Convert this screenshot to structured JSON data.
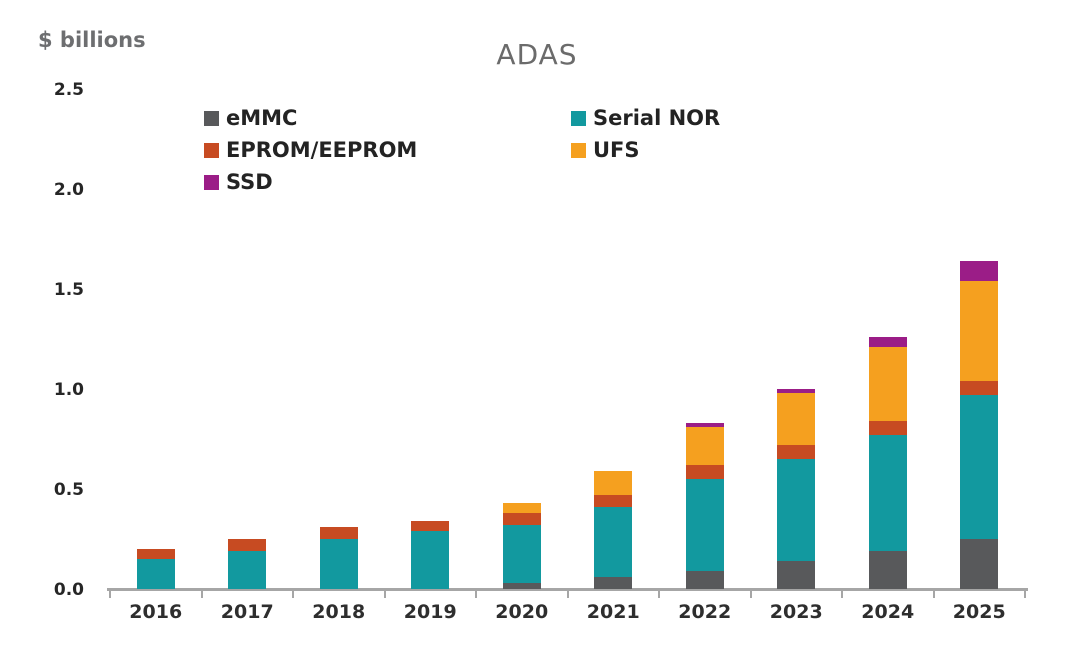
{
  "chart_data": {
    "type": "bar",
    "stacked": true,
    "title": "ADAS",
    "ylabel": "$ billions",
    "xlabel": "",
    "categories": [
      "2016",
      "2017",
      "2018",
      "2019",
      "2020",
      "2021",
      "2022",
      "2023",
      "2024",
      "2025"
    ],
    "series": [
      {
        "name": "eMMC",
        "color": "#58595B",
        "values": [
          0,
          0,
          0,
          0,
          0.03,
          0.06,
          0.09,
          0.14,
          0.19,
          0.25
        ]
      },
      {
        "name": "Serial NOR",
        "color": "#12999F",
        "values": [
          0.15,
          0.19,
          0.25,
          0.29,
          0.29,
          0.35,
          0.46,
          0.51,
          0.58,
          0.72
        ]
      },
      {
        "name": "EPROM/EEPROM",
        "color": "#C74B22",
        "values": [
          0.05,
          0.06,
          0.06,
          0.05,
          0.06,
          0.06,
          0.07,
          0.07,
          0.07,
          0.07
        ]
      },
      {
        "name": "UFS",
        "color": "#F5A01F",
        "values": [
          0,
          0,
          0,
          0,
          0.05,
          0.12,
          0.19,
          0.26,
          0.37,
          0.5
        ]
      },
      {
        "name": "SSD",
        "color": "#9B1D87",
        "values": [
          0,
          0,
          0,
          0,
          0,
          0,
          0.02,
          0.02,
          0.05,
          0.1
        ]
      }
    ],
    "totals": [
      0.2,
      0.25,
      0.31,
      0.34,
      0.43,
      0.59,
      0.83,
      1.0,
      1.26,
      1.64
    ],
    "ylim": [
      0,
      2.5
    ],
    "yticks": [
      0.0,
      0.5,
      1.0,
      1.5,
      2.0,
      2.5
    ],
    "grid": false,
    "axis_color": "#A6A6A6",
    "legend_position": "top-inside-two-columns",
    "legend_columns": [
      [
        "eMMC",
        "EPROM/EEPROM",
        "SSD"
      ],
      [
        "Serial NOR",
        "UFS"
      ]
    ]
  }
}
